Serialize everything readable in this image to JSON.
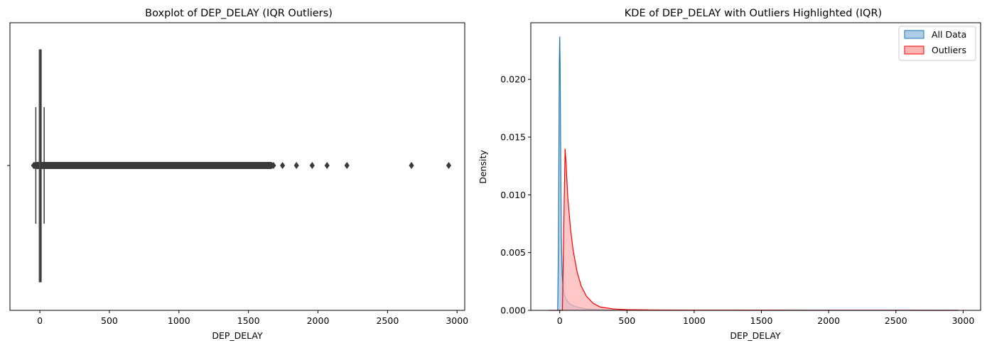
{
  "chart_data": [
    {
      "type": "box",
      "title": "Boxplot of DEP_DELAY (IQR Outliers)",
      "xlabel": "DEP_DELAY",
      "ylabel": "",
      "xlim": [
        -215,
        3055
      ],
      "xticks": [
        0,
        500,
        1000,
        1500,
        2000,
        2500,
        3000
      ],
      "xtick_labels": [
        "0",
        "500",
        "1000",
        "1500",
        "2000",
        "2500",
        "3000"
      ],
      "ytick_labels": [
        ""
      ],
      "box": {
        "q1": -5,
        "median": -2,
        "q3": 7,
        "whisker_low": -29,
        "whisker_high": 31
      },
      "outlier_dense_range": [
        -45,
        1680
      ],
      "outliers": [
        -45,
        -40,
        1350,
        1380,
        1420,
        1450,
        1480,
        1510,
        1530,
        1560,
        1590,
        1610,
        1640,
        1660,
        1680,
        1745,
        1845,
        1958,
        2065,
        2208,
        2672,
        2940
      ],
      "color": "#3a3a3a"
    },
    {
      "type": "area",
      "title": "KDE of DEP_DELAY with Outliers Highlighted (IQR)",
      "xlabel": "DEP_DELAY",
      "ylabel": "Density",
      "xlim": [
        -215,
        3130
      ],
      "ylim": [
        0,
        0.0249
      ],
      "xticks": [
        0,
        500,
        1000,
        1500,
        2000,
        2500,
        3000
      ],
      "xtick_labels": [
        "0",
        "500",
        "1000",
        "1500",
        "2000",
        "2500",
        "3000"
      ],
      "yticks": [
        0.0,
        0.005,
        0.01,
        0.015,
        0.02
      ],
      "ytick_labels": [
        "0.000",
        "0.005",
        "0.010",
        "0.015",
        "0.020"
      ],
      "legend_position": "top-right",
      "series": [
        {
          "name": "All Data",
          "color": "#1f77b4",
          "fill": "#aecde6",
          "x": [
            -15,
            -10,
            -6,
            -3,
            0,
            3,
            7,
            12,
            18,
            25,
            35,
            50,
            70,
            100,
            140,
            200,
            300,
            500,
            1000,
            2000,
            2960
          ],
          "y": [
            0.0,
            0.005,
            0.014,
            0.0215,
            0.0237,
            0.0215,
            0.014,
            0.0065,
            0.0032,
            0.0019,
            0.0013,
            0.0009,
            0.0006,
            0.0004,
            0.00025,
            0.00012,
            5e-05,
            2e-05,
            5e-06,
            2e-06,
            0.0
          ]
        },
        {
          "name": "Outliers",
          "color": "#ff0000",
          "fill": "#ffb4b4",
          "x": [
            -80,
            0,
            20,
            32,
            40,
            48,
            60,
            80,
            100,
            130,
            160,
            200,
            250,
            300,
            400,
            500,
            700,
            1000,
            1500,
            2000,
            2500,
            2970
          ],
          "y": [
            0.0,
            0.0,
            0.0,
            0.0085,
            0.014,
            0.0126,
            0.0098,
            0.0071,
            0.0052,
            0.0033,
            0.0021,
            0.0012,
            0.0006,
            0.0003,
            0.00012,
            6e-05,
            3e-05,
            2e-05,
            1.5e-05,
            1e-05,
            8e-06,
            0.0
          ]
        }
      ]
    }
  ]
}
